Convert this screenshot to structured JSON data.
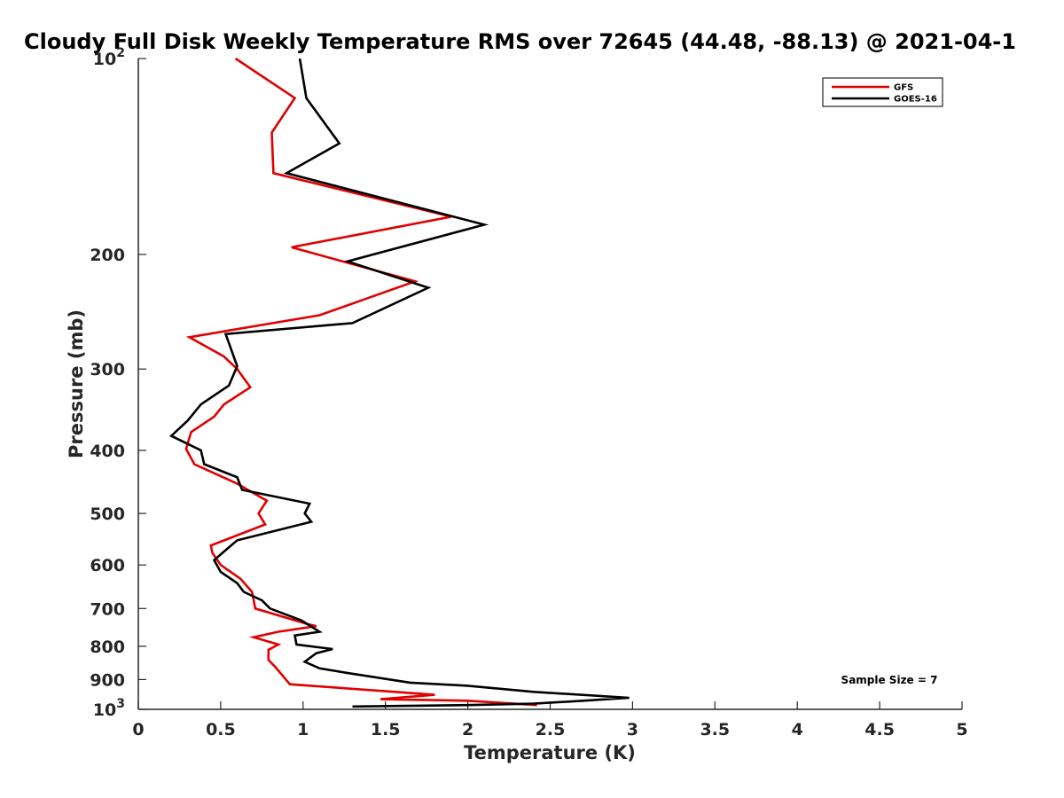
{
  "chart_data": {
    "type": "line",
    "title": "Cloudy Full Disk Weekly Temperature RMS over 72645 (44.48, -88.13) @ 2021-04-1",
    "xlabel": "Temperature (K)",
    "ylabel": "Pressure (mb)",
    "xlim": [
      0,
      5
    ],
    "ylim": [
      100,
      1000
    ],
    "y_scale": "log",
    "y_reversed": true,
    "grid": false,
    "legend_position": "top-right",
    "x_ticks": [
      0,
      0.5,
      1,
      1.5,
      2,
      2.5,
      3,
      3.5,
      4,
      4.5,
      5
    ],
    "x_tick_labels": [
      "0",
      "0.5",
      "1",
      "1.5",
      "2",
      "2.5",
      "3",
      "3.5",
      "4",
      "4.5",
      "5"
    ],
    "y_ticks": [
      {
        "value": 100,
        "base": "10",
        "exp": "2"
      },
      {
        "value": 200,
        "label": "200"
      },
      {
        "value": 300,
        "label": "300"
      },
      {
        "value": 400,
        "label": "400"
      },
      {
        "value": 500,
        "label": "500"
      },
      {
        "value": 600,
        "label": "600"
      },
      {
        "value": 700,
        "label": "700"
      },
      {
        "value": 800,
        "label": "800"
      },
      {
        "value": 900,
        "label": "900"
      },
      {
        "value": 1000,
        "base": "10",
        "exp": "3"
      }
    ],
    "annotation": "Sample Size = 7",
    "series": [
      {
        "name": "GFS",
        "color": "#e00000",
        "points": [
          [
            0.59,
            100
          ],
          [
            0.95,
            115
          ],
          [
            0.81,
            130
          ],
          [
            0.82,
            150
          ],
          [
            1.9,
            175
          ],
          [
            0.93,
            195
          ],
          [
            1.68,
            220
          ],
          [
            1.1,
            248
          ],
          [
            0.31,
            268
          ],
          [
            0.52,
            287
          ],
          [
            0.6,
            300
          ],
          [
            0.68,
            320
          ],
          [
            0.52,
            340
          ],
          [
            0.46,
            355
          ],
          [
            0.32,
            375
          ],
          [
            0.29,
            398
          ],
          [
            0.34,
            420
          ],
          [
            0.6,
            450
          ],
          [
            0.78,
            478
          ],
          [
            0.73,
            500
          ],
          [
            0.77,
            520
          ],
          [
            0.44,
            560
          ],
          [
            0.45,
            575
          ],
          [
            0.5,
            600
          ],
          [
            0.62,
            630
          ],
          [
            0.69,
            660
          ],
          [
            0.71,
            700
          ],
          [
            1.03,
            740
          ],
          [
            1.08,
            745
          ],
          [
            0.85,
            760
          ],
          [
            0.7,
            775
          ],
          [
            0.85,
            795
          ],
          [
            0.79,
            810
          ],
          [
            0.79,
            840
          ],
          [
            0.83,
            860
          ],
          [
            0.92,
            915
          ],
          [
            1.8,
            950
          ],
          [
            1.47,
            965
          ],
          [
            2.0,
            970
          ],
          [
            2.42,
            985
          ]
        ]
      },
      {
        "name": "GOES-16",
        "color": "#000000",
        "points": [
          [
            0.98,
            100
          ],
          [
            1.02,
            115
          ],
          [
            1.22,
            135
          ],
          [
            0.9,
            150
          ],
          [
            2.1,
            180
          ],
          [
            1.27,
            205
          ],
          [
            1.76,
            225
          ],
          [
            1.3,
            255
          ],
          [
            0.53,
            265
          ],
          [
            0.6,
            297
          ],
          [
            0.55,
            318
          ],
          [
            0.38,
            340
          ],
          [
            0.3,
            360
          ],
          [
            0.2,
            380
          ],
          [
            0.38,
            400
          ],
          [
            0.4,
            420
          ],
          [
            0.6,
            440
          ],
          [
            0.63,
            460
          ],
          [
            1.04,
            483
          ],
          [
            1.01,
            500
          ],
          [
            1.05,
            515
          ],
          [
            0.6,
            550
          ],
          [
            0.51,
            575
          ],
          [
            0.46,
            590
          ],
          [
            0.5,
            615
          ],
          [
            0.6,
            640
          ],
          [
            0.64,
            660
          ],
          [
            0.75,
            680
          ],
          [
            0.8,
            700
          ],
          [
            0.99,
            730
          ],
          [
            1.1,
            760
          ],
          [
            0.95,
            770
          ],
          [
            0.96,
            795
          ],
          [
            1.18,
            808
          ],
          [
            1.08,
            820
          ],
          [
            1.01,
            845
          ],
          [
            1.1,
            865
          ],
          [
            1.28,
            880
          ],
          [
            1.65,
            910
          ],
          [
            2.0,
            920
          ],
          [
            2.4,
            940
          ],
          [
            2.98,
            960
          ],
          [
            2.7,
            970
          ],
          [
            2.4,
            980
          ],
          [
            2.0,
            985
          ],
          [
            1.3,
            990
          ]
        ]
      }
    ]
  }
}
